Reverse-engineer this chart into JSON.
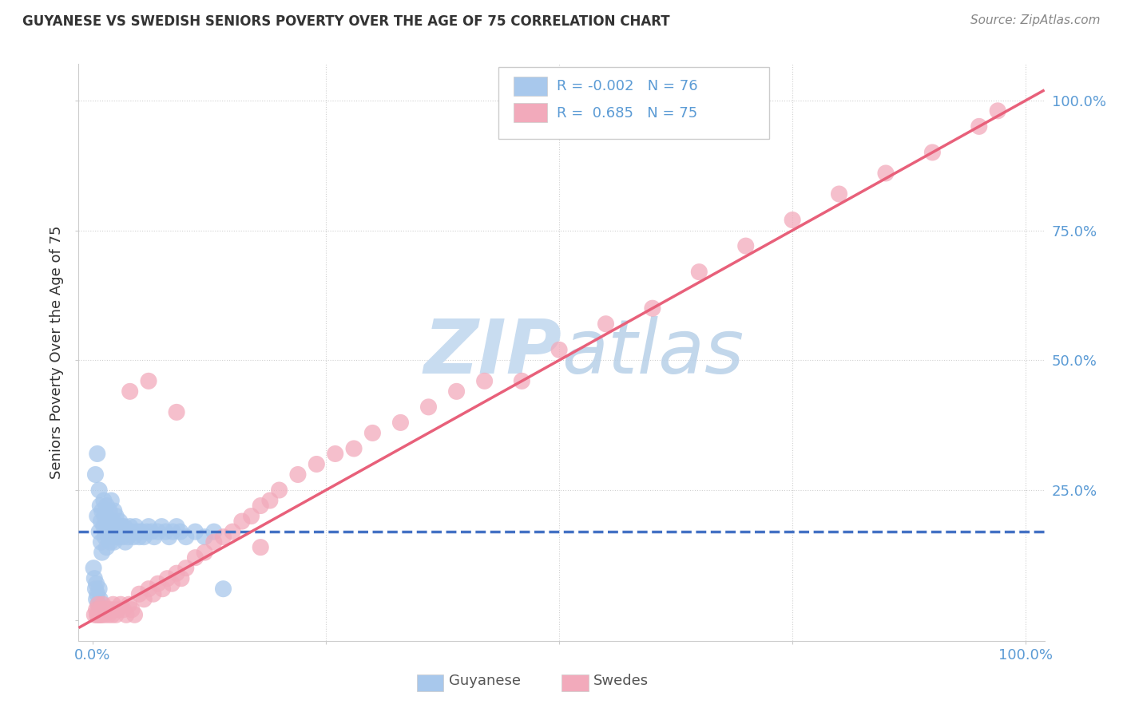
{
  "title": "GUYANESE VS SWEDISH SENIORS POVERTY OVER THE AGE OF 75 CORRELATION CHART",
  "source": "Source: ZipAtlas.com",
  "ylabel": "Seniors Poverty Over the Age of 75",
  "xlim": [
    -0.015,
    1.02
  ],
  "ylim": [
    -0.04,
    1.07
  ],
  "xticks": [
    0.0,
    0.25,
    0.5,
    0.75,
    1.0
  ],
  "yticks": [
    0.0,
    0.25,
    0.5,
    0.75,
    1.0
  ],
  "xticklabels": [
    "0.0%",
    "",
    "",
    "",
    "100.0%"
  ],
  "yticklabels": [
    "",
    "25.0%",
    "50.0%",
    "75.0%",
    "100.0%"
  ],
  "legend1_R": "-0.002",
  "legend1_N": "76",
  "legend2_R": "0.685",
  "legend2_N": "75",
  "blue_color": "#A8C8EC",
  "pink_color": "#F2AABB",
  "blue_line_color": "#4472C4",
  "pink_line_color": "#E8607A",
  "watermark_color": "#C8DCF0",
  "background_color": "#FFFFFF",
  "grid_color": "#D0D0D0",
  "tick_color": "#5B9BD5",
  "title_color": "#333333",
  "source_color": "#888888",
  "legend_text_color": "#5B9BD5",
  "bottom_legend_text_color": "#555555",
  "blue_line_y0": 0.17,
  "blue_line_slope": 0.0,
  "pink_line_y0": 0.0,
  "pink_line_slope": 1.0,
  "guyanese_x": [
    0.003,
    0.005,
    0.005,
    0.007,
    0.007,
    0.008,
    0.009,
    0.009,
    0.01,
    0.01,
    0.012,
    0.012,
    0.013,
    0.013,
    0.014,
    0.015,
    0.015,
    0.016,
    0.017,
    0.018,
    0.018,
    0.019,
    0.02,
    0.02,
    0.021,
    0.022,
    0.023,
    0.023,
    0.024,
    0.025,
    0.025,
    0.026,
    0.027,
    0.028,
    0.029,
    0.03,
    0.031,
    0.032,
    0.033,
    0.034,
    0.035,
    0.036,
    0.038,
    0.04,
    0.042,
    0.044,
    0.046,
    0.048,
    0.05,
    0.052,
    0.055,
    0.058,
    0.06,
    0.063,
    0.066,
    0.07,
    0.074,
    0.078,
    0.082,
    0.086,
    0.09,
    0.094,
    0.1,
    0.11,
    0.12,
    0.13,
    0.14,
    0.001,
    0.002,
    0.003,
    0.004,
    0.004,
    0.005,
    0.006,
    0.007,
    0.008
  ],
  "guyanese_y": [
    0.28,
    0.32,
    0.2,
    0.25,
    0.17,
    0.22,
    0.15,
    0.19,
    0.13,
    0.21,
    0.18,
    0.23,
    0.16,
    0.2,
    0.17,
    0.14,
    0.22,
    0.19,
    0.16,
    0.21,
    0.17,
    0.15,
    0.18,
    0.23,
    0.17,
    0.19,
    0.15,
    0.21,
    0.17,
    0.16,
    0.2,
    0.18,
    0.17,
    0.16,
    0.19,
    0.17,
    0.18,
    0.16,
    0.17,
    0.18,
    0.15,
    0.17,
    0.16,
    0.18,
    0.17,
    0.16,
    0.18,
    0.17,
    0.16,
    0.17,
    0.16,
    0.17,
    0.18,
    0.17,
    0.16,
    0.17,
    0.18,
    0.17,
    0.16,
    0.17,
    0.18,
    0.17,
    0.16,
    0.17,
    0.16,
    0.17,
    0.06,
    0.1,
    0.08,
    0.06,
    0.04,
    0.07,
    0.05,
    0.03,
    0.06,
    0.04
  ],
  "swedes_x": [
    0.002,
    0.004,
    0.005,
    0.006,
    0.007,
    0.008,
    0.009,
    0.01,
    0.011,
    0.012,
    0.013,
    0.015,
    0.017,
    0.019,
    0.021,
    0.023,
    0.025,
    0.027,
    0.03,
    0.033,
    0.036,
    0.039,
    0.042,
    0.045,
    0.05,
    0.055,
    0.06,
    0.065,
    0.07,
    0.075,
    0.08,
    0.085,
    0.09,
    0.095,
    0.1,
    0.11,
    0.12,
    0.13,
    0.14,
    0.15,
    0.16,
    0.17,
    0.18,
    0.19,
    0.2,
    0.22,
    0.24,
    0.26,
    0.28,
    0.3,
    0.33,
    0.36,
    0.39,
    0.42,
    0.46,
    0.5,
    0.55,
    0.6,
    0.65,
    0.7,
    0.75,
    0.8,
    0.85,
    0.9,
    0.95,
    0.97,
    0.04,
    0.06,
    0.09,
    0.18,
    0.005,
    0.008,
    0.012,
    0.016,
    0.022
  ],
  "swedes_y": [
    0.01,
    0.02,
    0.01,
    0.03,
    0.02,
    0.01,
    0.02,
    0.01,
    0.03,
    0.02,
    0.01,
    0.02,
    0.01,
    0.02,
    0.01,
    0.02,
    0.01,
    0.02,
    0.03,
    0.02,
    0.01,
    0.03,
    0.02,
    0.01,
    0.05,
    0.04,
    0.06,
    0.05,
    0.07,
    0.06,
    0.08,
    0.07,
    0.09,
    0.08,
    0.1,
    0.12,
    0.13,
    0.15,
    0.16,
    0.17,
    0.19,
    0.2,
    0.22,
    0.23,
    0.25,
    0.28,
    0.3,
    0.32,
    0.33,
    0.36,
    0.38,
    0.41,
    0.44,
    0.46,
    0.46,
    0.52,
    0.57,
    0.6,
    0.67,
    0.72,
    0.77,
    0.82,
    0.86,
    0.9,
    0.95,
    0.98,
    0.44,
    0.46,
    0.4,
    0.14,
    0.01,
    0.01,
    0.02,
    0.02,
    0.03
  ]
}
